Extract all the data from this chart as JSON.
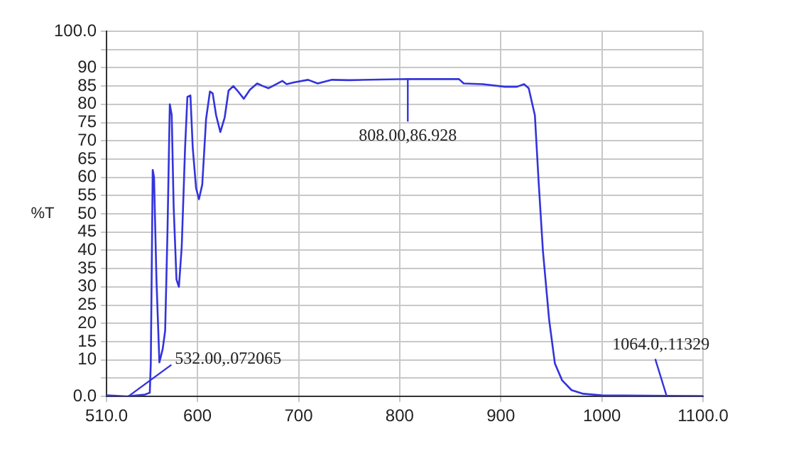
{
  "chart_data": {
    "type": "line",
    "ylabel": "%T",
    "xlim": [
      510,
      1100
    ],
    "ylim": [
      0,
      100
    ],
    "xticks": [
      {
        "value": 510,
        "label": "510.0"
      },
      600,
      700,
      800,
      900,
      1000,
      {
        "value": 1100,
        "label": "1100.0"
      }
    ],
    "yticks": [
      {
        "value": 0,
        "label": "0.0"
      },
      {
        "value": 5,
        "label": null
      },
      10,
      15,
      20,
      25,
      30,
      35,
      40,
      45,
      50,
      55,
      60,
      65,
      70,
      75,
      80,
      85,
      90,
      {
        "value": 95,
        "label": null
      },
      {
        "value": 100,
        "label": "100.0"
      }
    ],
    "grid": true,
    "legend": false,
    "marker": "none",
    "line_style": "solid",
    "annotations": [
      {
        "text": "532.00,.072065",
        "x": 532,
        "y": 0.072065
      },
      {
        "text": "808.00,86.928",
        "x": 808,
        "y": 86.928
      },
      {
        "text": "1064.0,.11329",
        "x": 1064,
        "y": 0.11329
      }
    ],
    "series": [
      {
        "color": "#3333dd",
        "x": [
          510,
          530,
          548,
          552.8,
          553.8,
          555.7,
          557,
          559.4,
          562.3,
          565.6,
          568,
          570.3,
          572.6,
          574.5,
          576.4,
          579.2,
          581.6,
          584.4,
          587.7,
          590,
          593,
          595.3,
          598.6,
          601.4,
          604.7,
          608.5,
          612.3,
          615,
          618.4,
          622.6,
          626.9,
          630.7,
          635.4,
          639.6,
          645.8,
          651.9,
          659,
          664.6,
          670.3,
          676.4,
          684,
          688.2,
          695.3,
          709.4,
          718.9,
          733,
          750,
          808,
          858.6,
          863.3,
          882,
          904,
          916,
          923,
          927.6,
          933.7,
          937.5,
          941.7,
          947.8,
          953.5,
          960.6,
          970,
          981.6,
          1000,
          1064,
          1100
        ],
        "values": [
          0.3,
          0,
          0.5,
          1,
          9,
          62,
          60,
          32,
          9.3,
          13,
          18,
          45,
          80,
          77,
          52,
          32,
          30,
          41,
          68,
          82,
          82.4,
          68,
          57,
          54,
          58,
          76,
          83.5,
          83,
          77,
          72.4,
          76.4,
          83.7,
          85,
          83.7,
          81.5,
          84,
          85.7,
          85,
          84.4,
          85.3,
          86.4,
          85.5,
          86,
          86.7,
          85.7,
          86.7,
          86.6,
          86.928,
          86.9,
          85.7,
          85.5,
          84.8,
          84.8,
          85.5,
          84.4,
          77,
          58.4,
          39.7,
          21,
          9,
          4.4,
          1.7,
          0.7,
          0.3,
          0.11329,
          0.1
        ]
      }
    ]
  }
}
